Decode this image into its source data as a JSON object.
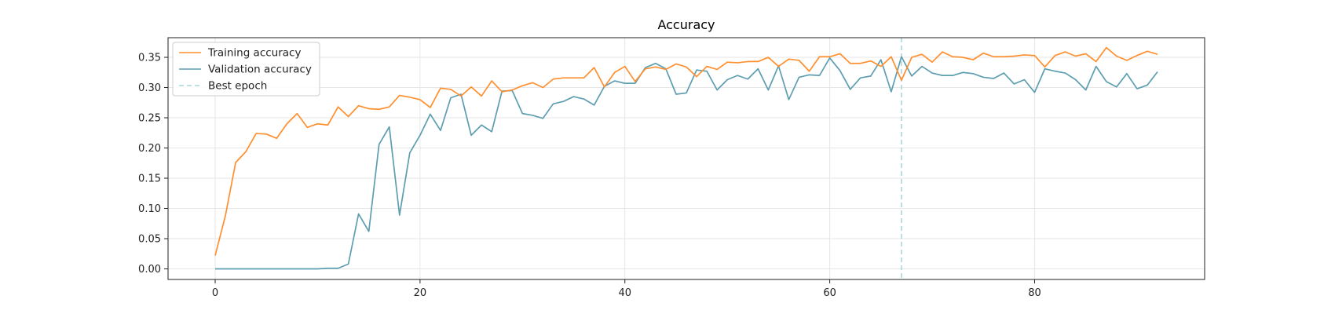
{
  "chart_data": {
    "type": "line",
    "title": "Accuracy",
    "xlabel": "",
    "ylabel": "",
    "xlim": [
      -4.6,
      96.6
    ],
    "ylim": [
      -0.0175,
      0.3825
    ],
    "xticks": [
      0,
      20,
      40,
      60,
      80
    ],
    "yticks": [
      0.0,
      0.05,
      0.1,
      0.15,
      0.2,
      0.25,
      0.3,
      0.35
    ],
    "grid": true,
    "legend_position": "upper-left",
    "best_epoch": 67,
    "series": [
      {
        "name": "Training accuracy",
        "color": "#ff8f2f",
        "x": [
          0,
          1,
          2,
          3,
          4,
          5,
          6,
          7,
          8,
          9,
          10,
          11,
          12,
          13,
          14,
          15,
          16,
          17,
          18,
          19,
          20,
          21,
          22,
          23,
          24,
          25,
          26,
          27,
          28,
          29,
          30,
          31,
          32,
          33,
          34,
          35,
          36,
          37,
          38,
          39,
          40,
          41,
          42,
          43,
          44,
          45,
          46,
          47,
          48,
          49,
          50,
          51,
          52,
          53,
          54,
          55,
          56,
          57,
          58,
          59,
          60,
          61,
          62,
          63,
          64,
          65,
          66,
          67,
          68,
          69,
          70,
          71,
          72,
          73,
          74,
          75,
          76,
          77,
          78,
          79,
          80,
          81,
          82,
          83,
          84,
          85,
          86,
          87,
          88,
          89,
          90,
          91,
          92
        ],
        "values": [
          0.022,
          0.088,
          0.176,
          0.194,
          0.224,
          0.223,
          0.216,
          0.24,
          0.257,
          0.234,
          0.24,
          0.238,
          0.268,
          0.252,
          0.27,
          0.265,
          0.264,
          0.268,
          0.287,
          0.284,
          0.28,
          0.267,
          0.299,
          0.297,
          0.286,
          0.301,
          0.286,
          0.311,
          0.293,
          0.296,
          0.303,
          0.308,
          0.3,
          0.314,
          0.316,
          0.316,
          0.316,
          0.333,
          0.301,
          0.325,
          0.335,
          0.31,
          0.331,
          0.334,
          0.33,
          0.339,
          0.334,
          0.318,
          0.335,
          0.33,
          0.342,
          0.341,
          0.343,
          0.343,
          0.35,
          0.335,
          0.347,
          0.345,
          0.327,
          0.351,
          0.351,
          0.356,
          0.34,
          0.34,
          0.344,
          0.335,
          0.351,
          0.312,
          0.35,
          0.355,
          0.342,
          0.359,
          0.351,
          0.35,
          0.346,
          0.357,
          0.351,
          0.351,
          0.352,
          0.354,
          0.353,
          0.334,
          0.353,
          0.359,
          0.352,
          0.356,
          0.343,
          0.366,
          0.352,
          0.345,
          0.353,
          0.36,
          0.355
        ]
      },
      {
        "name": "Validation accuracy",
        "color": "#5d9eb0",
        "x": [
          0,
          1,
          2,
          3,
          4,
          5,
          6,
          7,
          8,
          9,
          10,
          11,
          12,
          13,
          14,
          15,
          16,
          17,
          18,
          19,
          20,
          21,
          22,
          23,
          24,
          25,
          26,
          27,
          28,
          29,
          30,
          31,
          32,
          33,
          34,
          35,
          36,
          37,
          38,
          39,
          40,
          41,
          42,
          43,
          44,
          45,
          46,
          47,
          48,
          49,
          50,
          51,
          52,
          53,
          54,
          55,
          56,
          57,
          58,
          59,
          60,
          61,
          62,
          63,
          64,
          65,
          66,
          67,
          68,
          69,
          70,
          71,
          72,
          73,
          74,
          75,
          76,
          77,
          78,
          79,
          80,
          81,
          82,
          83,
          84,
          85,
          86,
          87,
          88,
          89,
          90,
          91,
          92
        ],
        "values": [
          0.0,
          0.0,
          0.0,
          0.0,
          0.0,
          0.0,
          0.0,
          0.0,
          0.0,
          0.0,
          0.0,
          0.001,
          0.001,
          0.008,
          0.091,
          0.062,
          0.206,
          0.235,
          0.089,
          0.192,
          0.221,
          0.256,
          0.229,
          0.283,
          0.289,
          0.221,
          0.238,
          0.227,
          0.294,
          0.295,
          0.257,
          0.254,
          0.249,
          0.273,
          0.277,
          0.285,
          0.281,
          0.271,
          0.302,
          0.311,
          0.307,
          0.307,
          0.333,
          0.34,
          0.331,
          0.289,
          0.291,
          0.329,
          0.327,
          0.296,
          0.313,
          0.32,
          0.314,
          0.331,
          0.296,
          0.336,
          0.28,
          0.317,
          0.321,
          0.32,
          0.349,
          0.328,
          0.297,
          0.316,
          0.319,
          0.346,
          0.293,
          0.351,
          0.319,
          0.335,
          0.324,
          0.32,
          0.32,
          0.325,
          0.323,
          0.317,
          0.315,
          0.324,
          0.306,
          0.313,
          0.292,
          0.331,
          0.327,
          0.324,
          0.313,
          0.296,
          0.335,
          0.31,
          0.301,
          0.323,
          0.298,
          0.304,
          0.326
        ]
      },
      {
        "name": "Best epoch",
        "color": "#a9d8dc"
      }
    ]
  }
}
